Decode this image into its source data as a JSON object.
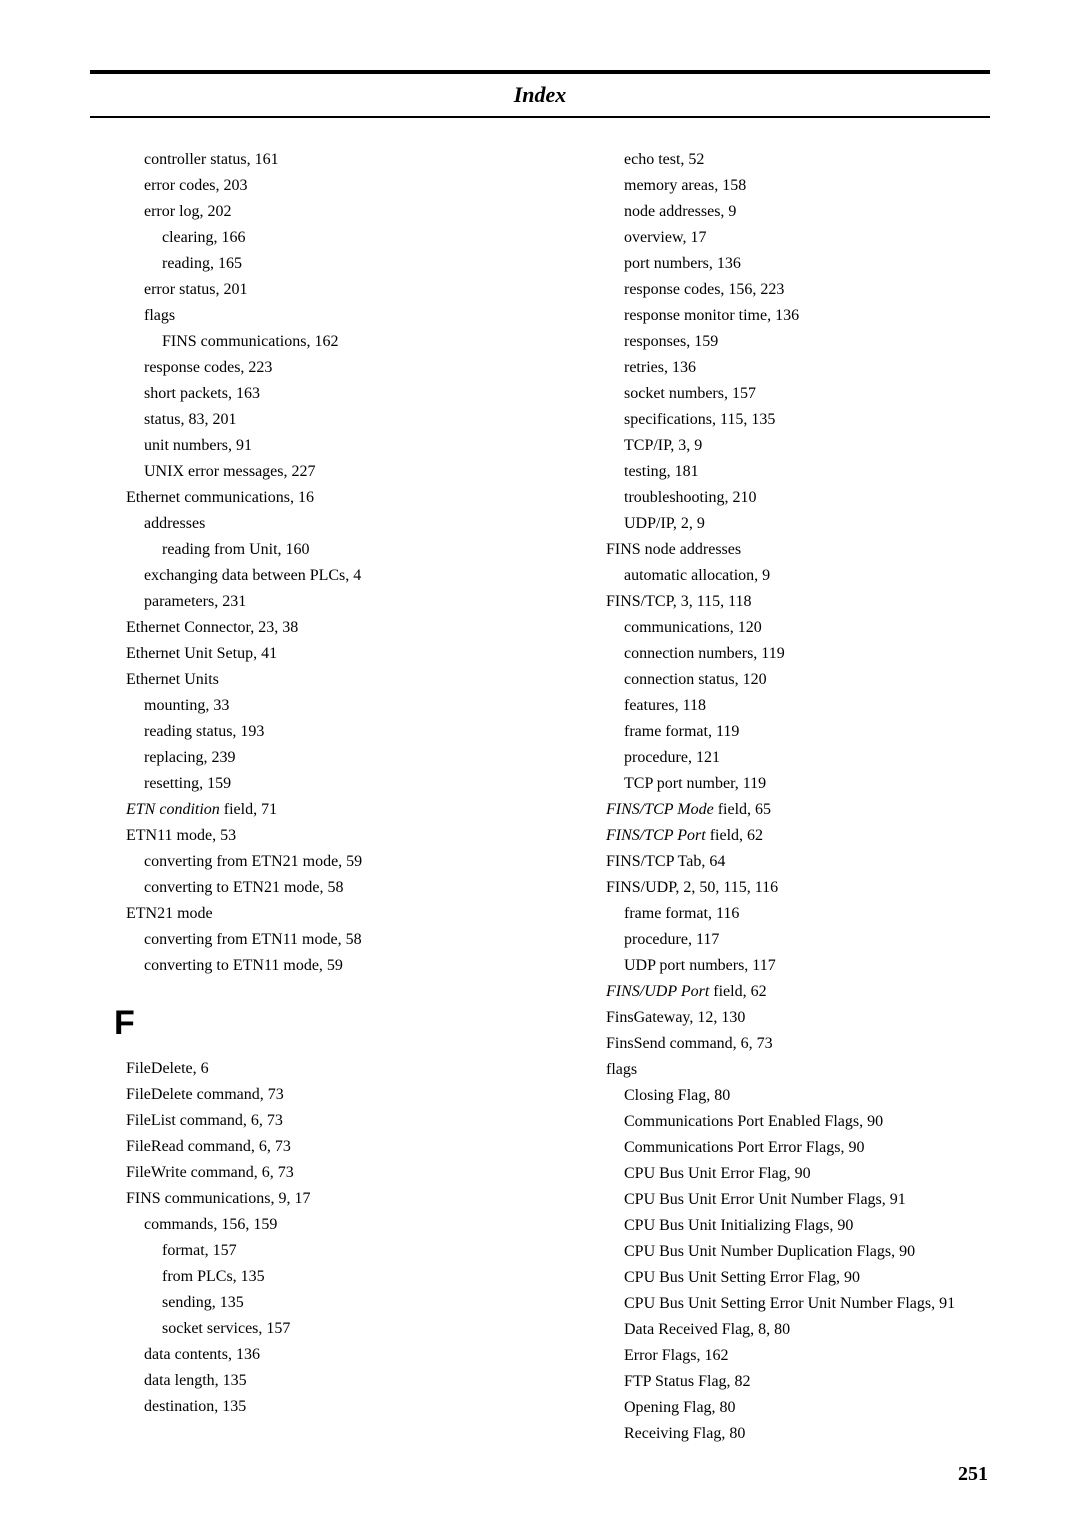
{
  "header": {
    "title": "Index"
  },
  "left": [
    {
      "indent": 1,
      "term": "controller status",
      "pages": ", 161"
    },
    {
      "indent": 1,
      "term": "error codes",
      "pages": ", 203"
    },
    {
      "indent": 1,
      "term": "error log",
      "pages": ", 202"
    },
    {
      "indent": 2,
      "term": "clearing",
      "pages": ", 166"
    },
    {
      "indent": 2,
      "term": "reading",
      "pages": ", 165"
    },
    {
      "indent": 1,
      "term": "error status",
      "pages": ", 201"
    },
    {
      "indent": 1,
      "term": "flags",
      "pages": ""
    },
    {
      "indent": 2,
      "term": "FINS communications",
      "pages": ", 162"
    },
    {
      "indent": 1,
      "term": "response codes",
      "pages": ", 223"
    },
    {
      "indent": 1,
      "term": "short packets",
      "pages": ", 163"
    },
    {
      "indent": 1,
      "term": "status",
      "pages": ", 83, 201"
    },
    {
      "indent": 1,
      "term": "unit numbers",
      "pages": ", 91"
    },
    {
      "indent": 1,
      "term": "UNIX error messages",
      "pages": ", 227"
    },
    {
      "indent": 0,
      "term": "Ethernet communications",
      "pages": ", 16"
    },
    {
      "indent": 1,
      "term": "addresses",
      "pages": ""
    },
    {
      "indent": 2,
      "term": "reading from Unit",
      "pages": ", 160"
    },
    {
      "indent": 1,
      "term": "exchanging data between PLCs",
      "pages": ", 4"
    },
    {
      "indent": 1,
      "term": "parameters",
      "pages": ", 231"
    },
    {
      "indent": 0,
      "term": "Ethernet Connector",
      "pages": ", 23, 38"
    },
    {
      "indent": 0,
      "term": "Ethernet Unit Setup",
      "pages": ", 41"
    },
    {
      "indent": 0,
      "term": "Ethernet Units",
      "pages": ""
    },
    {
      "indent": 1,
      "term": "mounting",
      "pages": ", 33"
    },
    {
      "indent": 1,
      "term": "reading status",
      "pages": ", 193"
    },
    {
      "indent": 1,
      "term": "replacing",
      "pages": ", 239"
    },
    {
      "indent": 1,
      "term": "resetting",
      "pages": ", 159"
    },
    {
      "indent": 0,
      "italic": true,
      "term": "ETN condition",
      "suffix": " field",
      "pages": ", 71"
    },
    {
      "indent": 0,
      "term": "ETN11 mode",
      "pages": ", 53"
    },
    {
      "indent": 1,
      "term": "converting from ETN21 mode",
      "pages": ", 59"
    },
    {
      "indent": 1,
      "term": "converting to ETN21 mode",
      "pages": ", 58"
    },
    {
      "indent": 0,
      "term": "ETN21 mode",
      "pages": ""
    },
    {
      "indent": 1,
      "term": "converting from ETN11 mode",
      "pages": ", 58"
    },
    {
      "indent": 1,
      "term": "converting to ETN11 mode",
      "pages": ", 59"
    }
  ],
  "letterHeading": "F",
  "leftF": [
    {
      "indent": 0,
      "term": "FileDelete",
      "pages": ", 6"
    },
    {
      "indent": 0,
      "term": "FileDelete command",
      "pages": ", 73"
    },
    {
      "indent": 0,
      "term": "FileList command",
      "pages": ", 6, 73"
    },
    {
      "indent": 0,
      "term": "FileRead command",
      "pages": ", 6, 73"
    },
    {
      "indent": 0,
      "term": "FileWrite command",
      "pages": ", 6, 73"
    },
    {
      "indent": 0,
      "term": "FINS communications",
      "pages": ", 9, 17"
    },
    {
      "indent": 1,
      "term": "commands",
      "pages": ", 156, 159"
    },
    {
      "indent": 2,
      "term": "format",
      "pages": ", 157"
    },
    {
      "indent": 2,
      "term": "from PLCs",
      "pages": ", 135"
    },
    {
      "indent": 2,
      "term": "sending",
      "pages": ", 135"
    },
    {
      "indent": 2,
      "term": "socket services",
      "pages": ", 157"
    },
    {
      "indent": 1,
      "term": "data contents",
      "pages": ", 136"
    },
    {
      "indent": 1,
      "term": "data length",
      "pages": ", 135"
    },
    {
      "indent": 1,
      "term": "destination",
      "pages": ", 135"
    }
  ],
  "right": [
    {
      "indent": 1,
      "term": "echo test",
      "pages": ", 52"
    },
    {
      "indent": 1,
      "term": "memory areas",
      "pages": ", 158"
    },
    {
      "indent": 1,
      "term": "node addresses",
      "pages": ", 9"
    },
    {
      "indent": 1,
      "term": "overview",
      "pages": ", 17"
    },
    {
      "indent": 1,
      "term": "port numbers",
      "pages": ", 136"
    },
    {
      "indent": 1,
      "term": "response codes",
      "pages": ", 156, 223"
    },
    {
      "indent": 1,
      "term": "response monitor time",
      "pages": ", 136"
    },
    {
      "indent": 1,
      "term": "responses",
      "pages": ", 159"
    },
    {
      "indent": 1,
      "term": "retries",
      "pages": ", 136"
    },
    {
      "indent": 1,
      "term": "socket numbers",
      "pages": ", 157"
    },
    {
      "indent": 1,
      "term": "specifications",
      "pages": ", 115, 135"
    },
    {
      "indent": 1,
      "term": "TCP/IP",
      "pages": ", 3, 9"
    },
    {
      "indent": 1,
      "term": "testing",
      "pages": ", 181"
    },
    {
      "indent": 1,
      "term": "troubleshooting",
      "pages": ", 210"
    },
    {
      "indent": 1,
      "term": "UDP/IP",
      "pages": ", 2, 9"
    },
    {
      "indent": 0,
      "term": "FINS node addresses",
      "pages": ""
    },
    {
      "indent": 1,
      "term": "automatic allocation",
      "pages": ", 9"
    },
    {
      "indent": 0,
      "term": "FINS/TCP",
      "pages": ", 3, 115, 118"
    },
    {
      "indent": 1,
      "term": "communications",
      "pages": ", 120"
    },
    {
      "indent": 1,
      "term": "connection numbers",
      "pages": ", 119"
    },
    {
      "indent": 1,
      "term": "connection status",
      "pages": ", 120"
    },
    {
      "indent": 1,
      "term": "features",
      "pages": ", 118"
    },
    {
      "indent": 1,
      "term": "frame format",
      "pages": ", 119"
    },
    {
      "indent": 1,
      "term": "procedure",
      "pages": ", 121"
    },
    {
      "indent": 1,
      "term": "TCP port number",
      "pages": ", 119"
    },
    {
      "indent": 0,
      "italic": true,
      "term": "FINS/TCP Mode",
      "suffix": " field",
      "pages": ", 65"
    },
    {
      "indent": 0,
      "italic": true,
      "term": "FINS/TCP Port",
      "suffix": " field",
      "pages": ", 62"
    },
    {
      "indent": 0,
      "term": "FINS/TCP Tab",
      "pages": ", 64"
    },
    {
      "indent": 0,
      "term": "FINS/UDP",
      "pages": ", 2, 50, 115, 116"
    },
    {
      "indent": 1,
      "term": "frame format",
      "pages": ", 116"
    },
    {
      "indent": 1,
      "term": "procedure",
      "pages": ", 117"
    },
    {
      "indent": 1,
      "term": "UDP port numbers",
      "pages": ", 117"
    },
    {
      "indent": 0,
      "italic": true,
      "term": "FINS/UDP Port",
      "suffix": " field",
      "pages": ", 62"
    },
    {
      "indent": 0,
      "term": "FinsGateway",
      "pages": ", 12, 130"
    },
    {
      "indent": 0,
      "term": "FinsSend command",
      "pages": ", 6, 73"
    },
    {
      "indent": 0,
      "term": "flags",
      "pages": ""
    },
    {
      "indent": 1,
      "term": "Closing Flag",
      "pages": ", 80"
    },
    {
      "indent": 1,
      "term": "Communications Port Enabled Flags",
      "pages": ", 90"
    },
    {
      "indent": 1,
      "term": "Communications Port Error Flags",
      "pages": ", 90"
    },
    {
      "indent": 1,
      "term": "CPU Bus Unit Error Flag",
      "pages": ", 90"
    },
    {
      "indent": 1,
      "term": "CPU Bus Unit Error Unit Number Flags",
      "pages": ", 91"
    },
    {
      "indent": 1,
      "term": "CPU Bus Unit Initializing Flags",
      "pages": ", 90"
    },
    {
      "indent": 1,
      "term": "CPU Bus Unit Number Duplication Flags",
      "pages": ", 90"
    },
    {
      "indent": 1,
      "term": "CPU Bus Unit Setting Error Flag",
      "pages": ", 90"
    },
    {
      "indent": 1,
      "term": "CPU Bus Unit Setting Error Unit Number Flags",
      "pages": ", 91"
    },
    {
      "indent": 1,
      "term": "Data Received Flag",
      "pages": ", 8, 80"
    },
    {
      "indent": 1,
      "term": "Error Flags",
      "pages": ", 162"
    },
    {
      "indent": 1,
      "term": "FTP Status Flag",
      "pages": ", 82"
    },
    {
      "indent": 1,
      "term": "Opening Flag",
      "pages": ", 80"
    },
    {
      "indent": 1,
      "term": "Receiving Flag",
      "pages": ", 80"
    }
  ],
  "pageNumber": "251"
}
